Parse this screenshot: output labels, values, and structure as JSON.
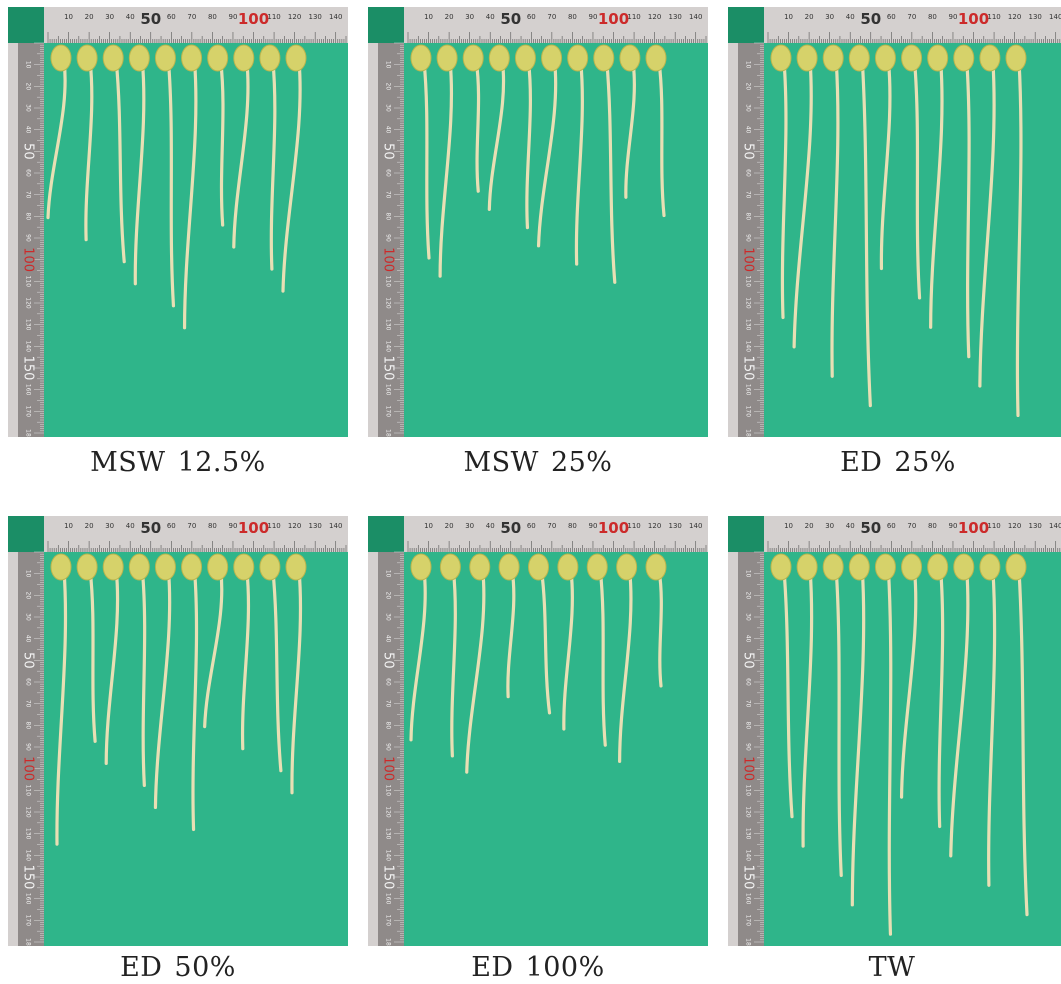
{
  "colors": {
    "background": "#2fb58a",
    "ruler_steel": "#d4d0cf",
    "ruler_dark": "#8f8a89",
    "ruler_red": "#cc2a2a",
    "seed": "#d6d26a",
    "stem": "#e8dfb4",
    "corner_tab": "#1b8e66"
  },
  "ruler": {
    "top_labels": [
      "10",
      "20",
      "30",
      "40",
      "50",
      "60",
      "70",
      "80",
      "90",
      "100",
      "110",
      "120",
      "130",
      "140"
    ],
    "side_labels": [
      "10",
      "20",
      "30",
      "40",
      "50",
      "60",
      "70",
      "80",
      "90",
      "100",
      "110",
      "120",
      "130",
      "140",
      "150",
      "160",
      "170",
      "18"
    ]
  },
  "panels": [
    {
      "treatment": "MSW",
      "value": "12.5%",
      "seedling_count": 10,
      "max_length": 0.75
    },
    {
      "treatment": "MSW",
      "value": "25%",
      "seedling_count": 10,
      "max_length": 0.62
    },
    {
      "treatment": "ED",
      "value": "25%",
      "seedling_count": 10,
      "max_length": 1.0
    },
    {
      "treatment": "ED",
      "value": "50%",
      "seedling_count": 10,
      "max_length": 0.75
    },
    {
      "treatment": "ED",
      "value": "100%",
      "seedling_count": 9,
      "max_length": 0.55
    },
    {
      "treatment": "TW",
      "value": "",
      "seedling_count": 10,
      "max_length": 1.0
    }
  ]
}
